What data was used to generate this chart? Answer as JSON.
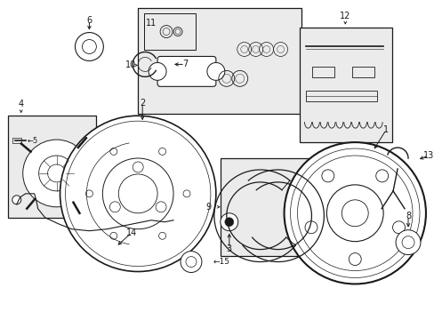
{
  "bg_color": "#ffffff",
  "line_color": "#1a1a1a",
  "fig_width": 4.89,
  "fig_height": 3.6,
  "dpi": 100,
  "gray_fill": "#e8e8e8",
  "box_fill": "#ebebeb"
}
